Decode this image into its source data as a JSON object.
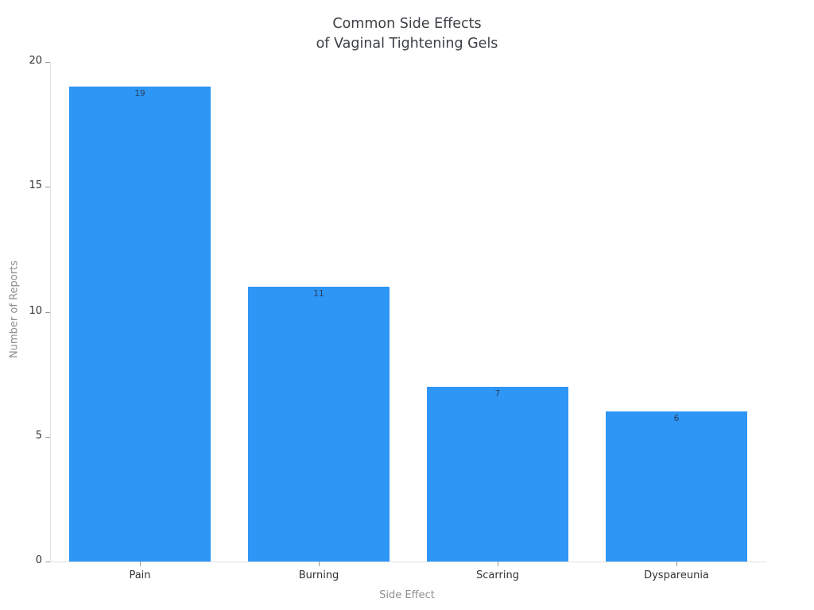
{
  "chart_data": {
    "type": "bar",
    "title": "Common Side Effects\nof Vaginal Tightening Gels",
    "title_lines": [
      "Common Side Effects",
      "of Vaginal Tightening Gels"
    ],
    "categories": [
      "Pain",
      "Burning",
      "Scarring",
      "Dyspareunia"
    ],
    "values": [
      19,
      11,
      7,
      6
    ],
    "value_labels": [
      "19",
      "11",
      "7",
      "6"
    ],
    "xlabel": "Side Effect",
    "ylabel": "Number of Reports",
    "ylim": [
      0,
      20
    ],
    "yticks": [
      0,
      5,
      10,
      15,
      20
    ],
    "grid": false,
    "legend_position": "none",
    "colors": {
      "bar_fill": "#2e96f5",
      "value_label": "#2a3f5f",
      "tick_label": "#333333",
      "axis_title": "#8e8e8e",
      "title_text": "#3b3f44",
      "spine": "#e2e2e2",
      "tick_mark": "#9a9a9a",
      "background": "#ffffff"
    }
  }
}
